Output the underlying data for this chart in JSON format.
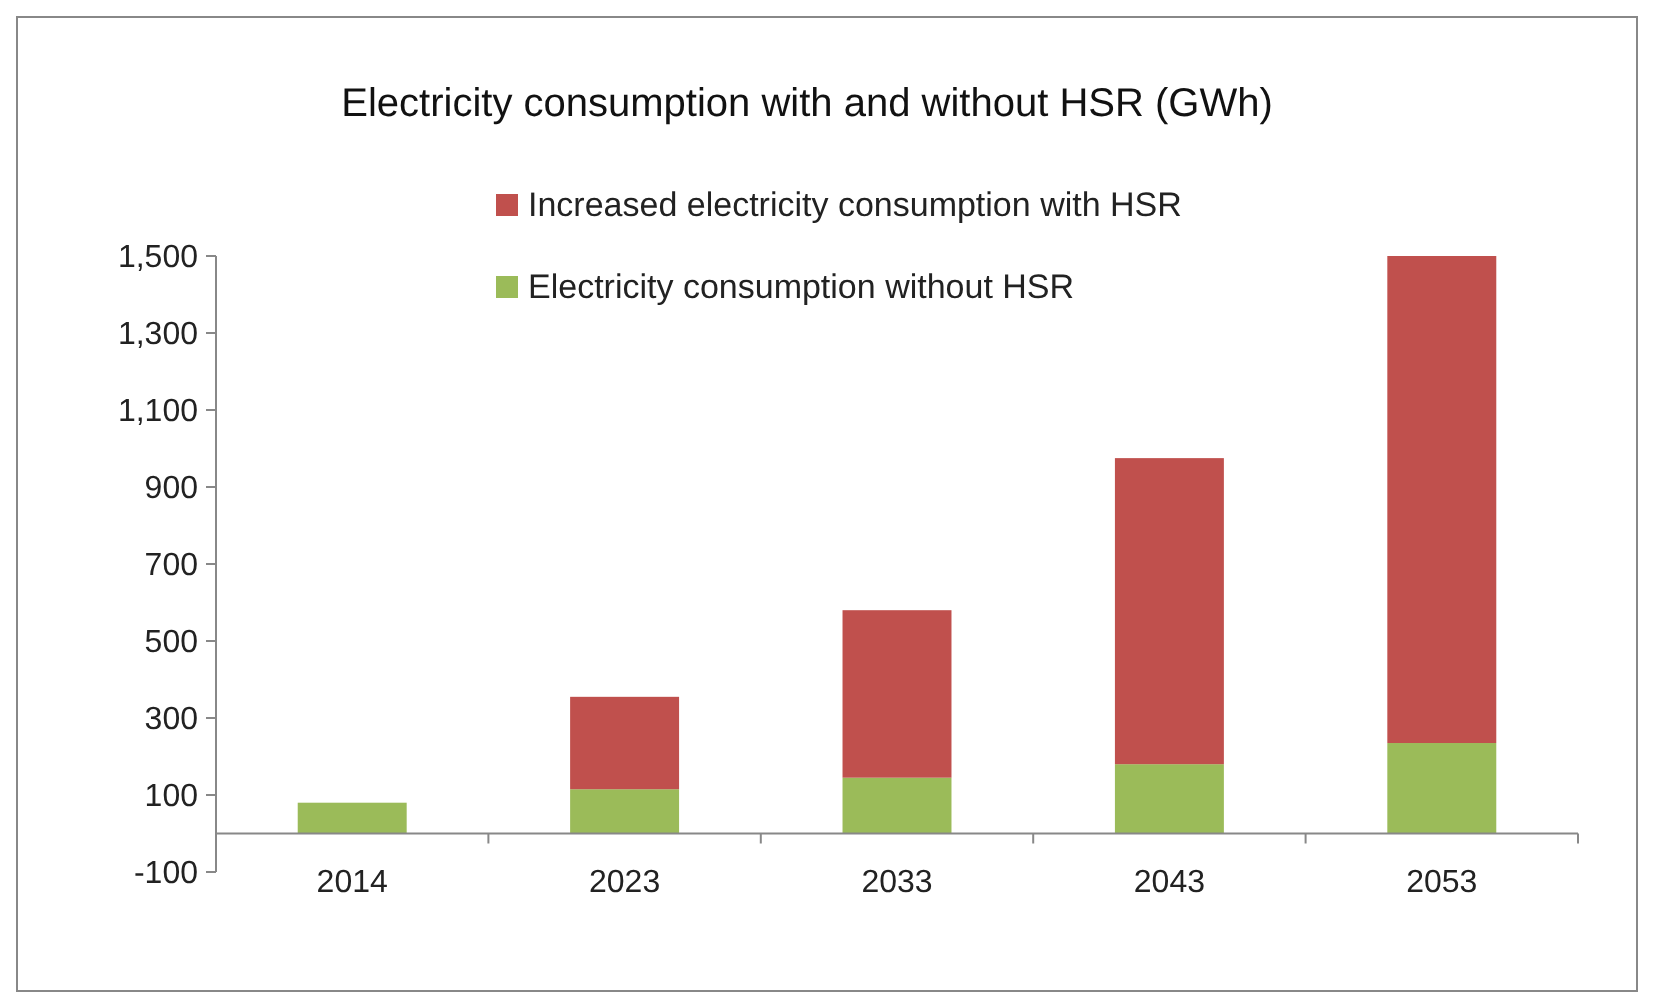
{
  "chart_data": {
    "type": "bar",
    "title": "Electricity consumption with and without HSR  (GWh)",
    "categories": [
      "2014",
      "2023",
      "2033",
      "2043",
      "2053"
    ],
    "stacked": true,
    "series": [
      {
        "name": "Electricity consumption without HSR",
        "color": "#9bbb59",
        "values": [
          80,
          115,
          145,
          180,
          235
        ]
      },
      {
        "name": "Increased electricity consumption with HSR",
        "color": "#c0504d",
        "values": [
          0,
          240,
          435,
          795,
          1265
        ]
      }
    ],
    "ylim": [
      -100,
      1500
    ],
    "yticks": [
      {
        "value": -100,
        "label": "-100"
      },
      {
        "value": 100,
        "label": "100"
      },
      {
        "value": 300,
        "label": "300"
      },
      {
        "value": 500,
        "label": "500"
      },
      {
        "value": 700,
        "label": "700"
      },
      {
        "value": 900,
        "label": "900"
      },
      {
        "value": 1100,
        "label": "1,100"
      },
      {
        "value": 1300,
        "label": "1,300"
      },
      {
        "value": 1500,
        "label": "1,500"
      }
    ],
    "grid": false,
    "legend": "top"
  }
}
